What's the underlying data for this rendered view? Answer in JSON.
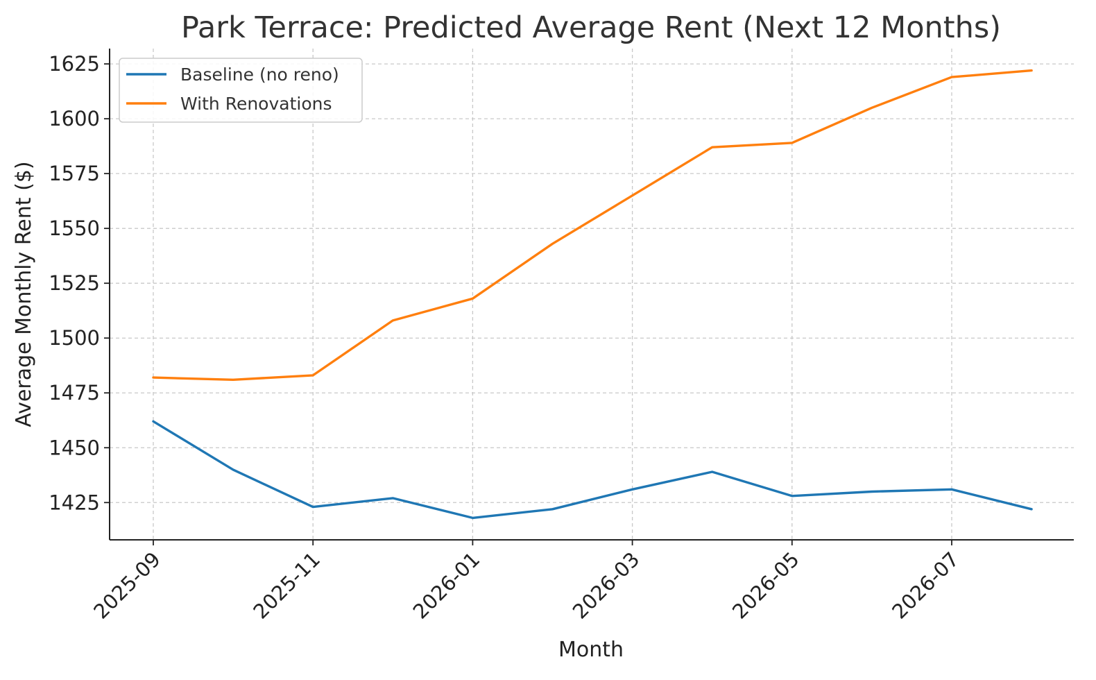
{
  "chart_data": {
    "type": "line",
    "title": "Park Terrace: Predicted Average Rent (Next 12 Months)",
    "xlabel": "Month",
    "ylabel": "Average Monthly Rent ($)",
    "x": [
      "2025-09",
      "2025-10",
      "2025-11",
      "2025-12",
      "2026-01",
      "2026-02",
      "2026-03",
      "2026-04",
      "2026-05",
      "2026-06",
      "2026-07",
      "2026-08"
    ],
    "x_ticks": [
      "2025-09",
      "2025-11",
      "2026-01",
      "2026-03",
      "2026-05",
      "2026-07"
    ],
    "y_ticks": [
      1425,
      1450,
      1475,
      1500,
      1525,
      1550,
      1575,
      1600,
      1625
    ],
    "ylim": [
      1408,
      1632
    ],
    "grid": true,
    "legend_position": "top-left",
    "series": [
      {
        "name": "Baseline (no reno)",
        "color": "#1f77b4",
        "values": [
          1462,
          1440,
          1423,
          1427,
          1418,
          1422,
          1431,
          1439,
          1428,
          1430,
          1431,
          1422
        ]
      },
      {
        "name": "With Renovations",
        "color": "#ff7f0e",
        "values": [
          1482,
          1481,
          1483,
          1508,
          1518,
          1543,
          1565,
          1587,
          1589,
          1605,
          1619,
          1622
        ]
      }
    ]
  }
}
